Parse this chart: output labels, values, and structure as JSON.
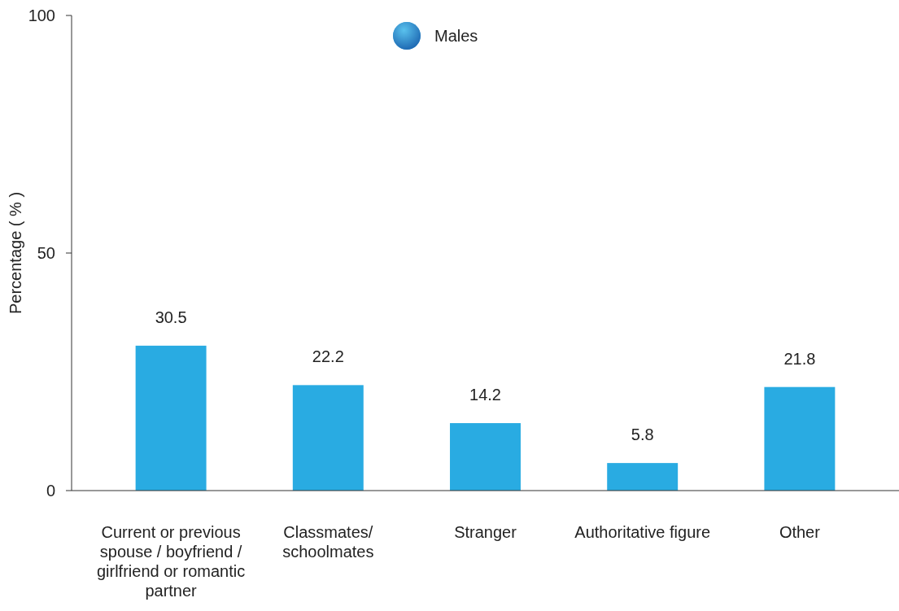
{
  "chart_data": {
    "type": "bar",
    "ylabel": "Percentage ( % )",
    "categories": [
      "Current or previous spouse / boyfriend / girlfriend or romantic partner",
      "Classmates/ schoolmates",
      "Stranger",
      "Authoritative figure",
      "Other"
    ],
    "series": [
      {
        "name": "Males",
        "color": "#29abe2",
        "values": [
          30.5,
          22.2,
          14.2,
          5.8,
          21.8
        ]
      }
    ],
    "ylim": [
      0,
      100
    ],
    "yticks": [
      0,
      50,
      100
    ],
    "data_labels": true,
    "legend": "top",
    "grid": false
  }
}
